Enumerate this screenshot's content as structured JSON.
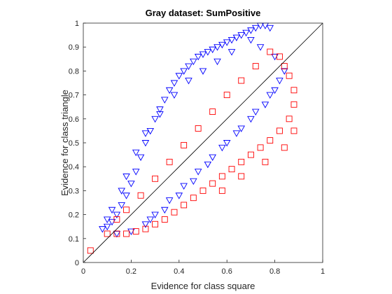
{
  "chart_data": {
    "type": "scatter",
    "title": "Gray dataset: SumPositive",
    "xlabel": "Evidence for class square",
    "ylabel": "Evidence for class triangle",
    "xlim": [
      0,
      1
    ],
    "ylim": [
      0,
      1
    ],
    "x_ticks": [
      "0",
      "0.2",
      "0.4",
      "0.6",
      "0.8",
      "1"
    ],
    "y_ticks": [
      "0",
      "0.1",
      "0.2",
      "0.3",
      "0.4",
      "0.5",
      "0.6",
      "0.7",
      "0.8",
      "0.9",
      "1"
    ],
    "grid": false,
    "reference_line": {
      "x": [
        0,
        1
      ],
      "y": [
        0,
        1
      ],
      "color": "#000000"
    },
    "series": [
      {
        "marker": "triangle-down",
        "color": "#0000ff",
        "points": [
          [
            0.08,
            0.14
          ],
          [
            0.1,
            0.15
          ],
          [
            0.12,
            0.17
          ],
          [
            0.14,
            0.2
          ],
          [
            0.16,
            0.24
          ],
          [
            0.18,
            0.28
          ],
          [
            0.2,
            0.33
          ],
          [
            0.22,
            0.38
          ],
          [
            0.24,
            0.44
          ],
          [
            0.26,
            0.5
          ],
          [
            0.28,
            0.55
          ],
          [
            0.3,
            0.6
          ],
          [
            0.32,
            0.64
          ],
          [
            0.34,
            0.68
          ],
          [
            0.36,
            0.72
          ],
          [
            0.38,
            0.75
          ],
          [
            0.4,
            0.78
          ],
          [
            0.42,
            0.8
          ],
          [
            0.44,
            0.82
          ],
          [
            0.46,
            0.84
          ],
          [
            0.48,
            0.86
          ],
          [
            0.5,
            0.87
          ],
          [
            0.52,
            0.88
          ],
          [
            0.54,
            0.89
          ],
          [
            0.56,
            0.9
          ],
          [
            0.58,
            0.91
          ],
          [
            0.6,
            0.92
          ],
          [
            0.62,
            0.93
          ],
          [
            0.64,
            0.94
          ],
          [
            0.66,
            0.95
          ],
          [
            0.68,
            0.96
          ],
          [
            0.7,
            0.97
          ],
          [
            0.72,
            0.98
          ],
          [
            0.74,
            0.99
          ],
          [
            0.76,
            0.99
          ],
          [
            0.78,
            0.98
          ],
          [
            0.14,
            0.12
          ],
          [
            0.2,
            0.13
          ],
          [
            0.26,
            0.16
          ],
          [
            0.3,
            0.2
          ],
          [
            0.36,
            0.26
          ],
          [
            0.42,
            0.32
          ],
          [
            0.48,
            0.38
          ],
          [
            0.54,
            0.44
          ],
          [
            0.6,
            0.5
          ],
          [
            0.66,
            0.56
          ],
          [
            0.72,
            0.63
          ],
          [
            0.78,
            0.7
          ],
          [
            0.82,
            0.76
          ],
          [
            0.84,
            0.8
          ],
          [
            0.8,
            0.86
          ],
          [
            0.74,
            0.9
          ],
          [
            0.28,
            0.18
          ],
          [
            0.34,
            0.22
          ],
          [
            0.4,
            0.28
          ],
          [
            0.46,
            0.34
          ],
          [
            0.52,
            0.41
          ],
          [
            0.58,
            0.48
          ],
          [
            0.64,
            0.54
          ],
          [
            0.7,
            0.6
          ],
          [
            0.76,
            0.66
          ],
          [
            0.8,
            0.72
          ],
          [
            0.7,
            0.93
          ],
          [
            0.62,
            0.88
          ],
          [
            0.56,
            0.84
          ],
          [
            0.5,
            0.8
          ],
          [
            0.44,
            0.76
          ],
          [
            0.38,
            0.7
          ],
          [
            0.32,
            0.62
          ],
          [
            0.26,
            0.54
          ],
          [
            0.22,
            0.46
          ],
          [
            0.18,
            0.36
          ],
          [
            0.16,
            0.3
          ],
          [
            0.12,
            0.22
          ],
          [
            0.1,
            0.18
          ]
        ]
      },
      {
        "marker": "square",
        "color": "#ff0000",
        "points": [
          [
            0.03,
            0.05
          ],
          [
            0.1,
            0.12
          ],
          [
            0.14,
            0.12
          ],
          [
            0.18,
            0.12
          ],
          [
            0.22,
            0.13
          ],
          [
            0.26,
            0.14
          ],
          [
            0.3,
            0.16
          ],
          [
            0.34,
            0.18
          ],
          [
            0.38,
            0.21
          ],
          [
            0.42,
            0.24
          ],
          [
            0.46,
            0.27
          ],
          [
            0.5,
            0.3
          ],
          [
            0.54,
            0.33
          ],
          [
            0.58,
            0.36
          ],
          [
            0.62,
            0.39
          ],
          [
            0.66,
            0.42
          ],
          [
            0.7,
            0.45
          ],
          [
            0.74,
            0.48
          ],
          [
            0.78,
            0.51
          ],
          [
            0.82,
            0.55
          ],
          [
            0.86,
            0.6
          ],
          [
            0.88,
            0.66
          ],
          [
            0.88,
            0.72
          ],
          [
            0.86,
            0.78
          ],
          [
            0.84,
            0.82
          ],
          [
            0.82,
            0.86
          ],
          [
            0.78,
            0.88
          ],
          [
            0.72,
            0.82
          ],
          [
            0.66,
            0.76
          ],
          [
            0.6,
            0.7
          ],
          [
            0.54,
            0.63
          ],
          [
            0.48,
            0.56
          ],
          [
            0.42,
            0.49
          ],
          [
            0.36,
            0.42
          ],
          [
            0.3,
            0.35
          ],
          [
            0.24,
            0.28
          ],
          [
            0.18,
            0.22
          ],
          [
            0.14,
            0.18
          ],
          [
            0.58,
            0.3
          ],
          [
            0.66,
            0.36
          ],
          [
            0.76,
            0.42
          ],
          [
            0.84,
            0.48
          ],
          [
            0.88,
            0.55
          ]
        ]
      }
    ]
  }
}
